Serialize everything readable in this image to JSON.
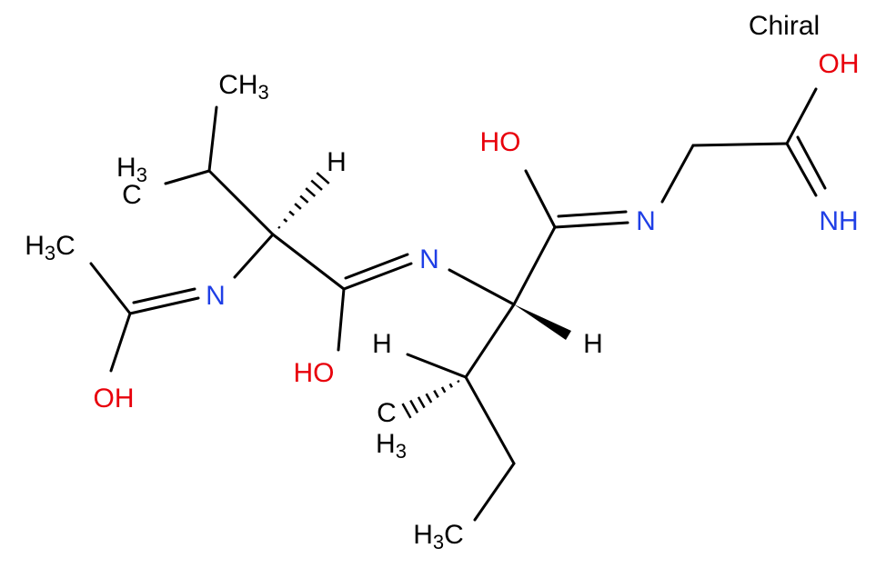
{
  "chiral_label": "Chiral",
  "atoms": [
    {
      "label": "H3C"
    },
    {
      "label": "OH"
    },
    {
      "label": "N"
    },
    {
      "label": "H3C"
    },
    {
      "label": "CH3"
    },
    {
      "label": "H"
    },
    {
      "label": "HO"
    },
    {
      "label": "N"
    },
    {
      "label": "H"
    },
    {
      "label": "H"
    },
    {
      "label": "H3C"
    },
    {
      "label": "H3C"
    },
    {
      "label": "HO"
    },
    {
      "label": "N"
    },
    {
      "label": "OH"
    },
    {
      "label": "NH"
    }
  ]
}
